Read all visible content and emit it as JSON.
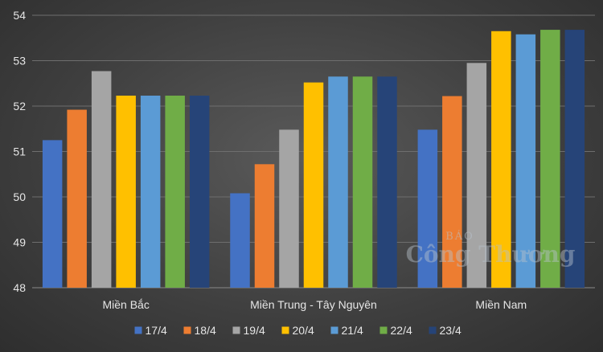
{
  "chart_data": {
    "type": "bar",
    "title": "",
    "xlabel": "",
    "ylabel": "",
    "categories": [
      "Miền Bắc",
      "Miền Trung - Tây Nguyên",
      "Miền Nam"
    ],
    "series": [
      {
        "name": "17/4",
        "color": "#4472c4",
        "values": [
          51.25,
          50.08,
          51.48
        ]
      },
      {
        "name": "18/4",
        "color": "#ed7d31",
        "values": [
          51.92,
          50.72,
          52.22
        ]
      },
      {
        "name": "19/4",
        "color": "#a5a5a5",
        "values": [
          52.77,
          51.48,
          52.95
        ]
      },
      {
        "name": "20/4",
        "color": "#ffc000",
        "values": [
          52.23,
          52.52,
          53.65
        ]
      },
      {
        "name": "21/4",
        "color": "#5b9bd5",
        "values": [
          52.23,
          52.65,
          53.58
        ]
      },
      {
        "name": "22/4",
        "color": "#70ad47",
        "values": [
          52.23,
          52.65,
          53.68
        ]
      },
      {
        "name": "23/4",
        "color": "#264478",
        "values": [
          52.23,
          52.65,
          53.68
        ]
      }
    ],
    "ylim": [
      48,
      54
    ],
    "yticks": [
      48,
      49,
      50,
      51,
      52,
      53,
      54
    ],
    "grid": true,
    "legend_position": "bottom"
  },
  "watermark": {
    "top": "BÁO",
    "main": "Công Thương"
  }
}
